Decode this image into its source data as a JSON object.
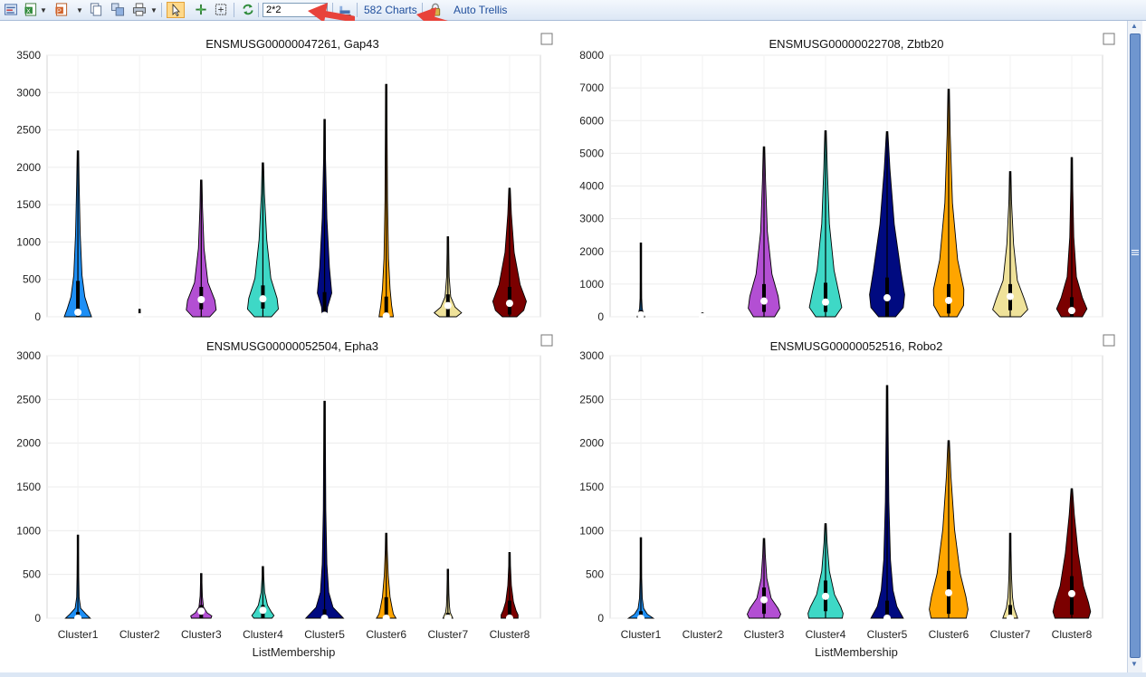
{
  "toolbar": {
    "layout_value": "2*2",
    "charts_count_label": "582 Charts",
    "auto_trellis_label": "Auto Trellis",
    "icons": [
      "properties-icon",
      "excel-export-icon",
      "powerpoint-export-icon",
      "copy-icon",
      "copy-all-icon",
      "print-icon",
      "select-pointer-icon",
      "pan-icon",
      "zoom-fit-icon",
      "refresh-icon",
      "bar-chart-icon",
      "lock-icon"
    ]
  },
  "annotation_color": "#e8423a",
  "x_axis_label": "ListMembership",
  "cluster_colors": [
    "#1e8ff5",
    "#9a9a9a",
    "#b34fd3",
    "#3ed8c6",
    "#000a80",
    "#ffa500",
    "#efe29a",
    "#7b0000"
  ],
  "chart_data": [
    {
      "type": "violin",
      "title": "ENSMUSG00000047261, Gap43",
      "categories": [
        "Cluster1",
        "Cluster2",
        "Cluster3",
        "Cluster4",
        "Cluster5",
        "Cluster6",
        "Cluster7",
        "Cluster8"
      ],
      "ylim": [
        0,
        3500
      ],
      "yticks": [
        0,
        500,
        1000,
        1500,
        2000,
        2500,
        3000,
        3500
      ],
      "show_x_labels": false,
      "max": [
        2220,
        100,
        1830,
        2060,
        2640,
        3110,
        1070,
        1720
      ],
      "median": [
        60,
        0,
        230,
        240,
        20,
        10,
        150,
        180
      ],
      "q1": [
        0,
        0,
        100,
        110,
        0,
        0,
        0,
        30
      ],
      "q3": [
        480,
        10,
        400,
        420,
        330,
        270,
        300,
        400
      ],
      "shape": [
        [
          500,
          380,
          240,
          130,
          60,
          20
        ],
        [
          60,
          20,
          5,
          2,
          0,
          0
        ],
        [
          300,
          550,
          500,
          230,
          80,
          20
        ],
        [
          300,
          570,
          520,
          280,
          120,
          30
        ],
        [
          60,
          90,
          250,
          160,
          60,
          10
        ],
        [
          250,
          180,
          120,
          60,
          20,
          5
        ],
        [
          300,
          500,
          250,
          80,
          20,
          5
        ],
        [
          250,
          520,
          620,
          380,
          150,
          40
        ]
      ]
    },
    {
      "type": "violin",
      "title": "ENSMUSG00000022708, Zbtb20",
      "categories": [
        "Cluster1",
        "Cluster2",
        "Cluster3",
        "Cluster4",
        "Cluster5",
        "Cluster6",
        "Cluster7",
        "Cluster8"
      ],
      "ylim": [
        0,
        8000
      ],
      "yticks": [
        0,
        1000,
        2000,
        3000,
        4000,
        5000,
        6000,
        7000,
        8000
      ],
      "show_x_labels": false,
      "max": [
        2260,
        120,
        5200,
        5690,
        5660,
        6960,
        4440,
        4870
      ],
      "median": [
        60,
        0,
        480,
        450,
        580,
        500,
        620,
        190
      ],
      "q1": [
        0,
        0,
        150,
        150,
        0,
        100,
        200,
        0
      ],
      "q3": [
        200,
        20,
        1000,
        1040,
        1200,
        1000,
        1000,
        600
      ],
      "shape": [
        [
          120,
          60,
          20,
          5,
          0,
          0
        ],
        [
          40,
          15,
          5,
          0,
          0,
          0
        ],
        [
          380,
          580,
          520,
          280,
          100,
          30
        ],
        [
          350,
          600,
          500,
          300,
          120,
          40
        ],
        [
          300,
          600,
          650,
          500,
          250,
          80
        ],
        [
          300,
          550,
          560,
          320,
          120,
          30
        ],
        [
          380,
          650,
          520,
          250,
          100,
          20
        ],
        [
          380,
          560,
          380,
          150,
          50,
          10
        ]
      ]
    },
    {
      "type": "violin",
      "title": "ENSMUSG00000052504, Epha3",
      "categories": [
        "Cluster1",
        "Cluster2",
        "Cluster3",
        "Cluster4",
        "Cluster5",
        "Cluster6",
        "Cluster7",
        "Cluster8"
      ],
      "ylim": [
        0,
        3000
      ],
      "yticks": [
        0,
        500,
        1000,
        1500,
        2000,
        2500,
        3000
      ],
      "show_x_labels": true,
      "max": [
        950,
        0,
        510,
        590,
        2480,
        970,
        560,
        750
      ],
      "median": [
        0,
        0,
        80,
        90,
        0,
        0,
        0,
        0
      ],
      "q1": [
        0,
        0,
        0,
        0,
        0,
        0,
        0,
        0
      ],
      "q3": [
        70,
        0,
        150,
        150,
        100,
        240,
        60,
        200
      ],
      "shape": [
        [
          450,
          280,
          80,
          20,
          5,
          0
        ],
        [
          0,
          0,
          0,
          0,
          0,
          0
        ],
        [
          350,
          380,
          200,
          60,
          15,
          0
        ],
        [
          320,
          400,
          300,
          150,
          40,
          5
        ],
        [
          700,
          300,
          130,
          60,
          20,
          5
        ],
        [
          350,
          250,
          200,
          120,
          50,
          10
        ],
        [
          160,
          120,
          60,
          30,
          10,
          0
        ],
        [
          300,
          300,
          220,
          120,
          40,
          5
        ]
      ]
    },
    {
      "type": "violin",
      "title": "ENSMUSG00000052516, Robo2",
      "categories": [
        "Cluster1",
        "Cluster2",
        "Cluster3",
        "Cluster4",
        "Cluster5",
        "Cluster6",
        "Cluster7",
        "Cluster8"
      ],
      "ylim": [
        0,
        3000
      ],
      "yticks": [
        0,
        500,
        1000,
        1500,
        2000,
        2500,
        3000
      ],
      "show_x_labels": true,
      "max": [
        920,
        0,
        910,
        1080,
        2660,
        2030,
        970,
        1480
      ],
      "median": [
        0,
        0,
        210,
        250,
        0,
        290,
        0,
        280
      ],
      "q1": [
        0,
        0,
        50,
        80,
        0,
        50,
        0,
        40
      ],
      "q3": [
        80,
        0,
        350,
        430,
        200,
        540,
        150,
        480
      ],
      "shape": [
        [
          450,
          220,
          80,
          25,
          5,
          0
        ],
        [
          0,
          0,
          0,
          0,
          0,
          0
        ],
        [
          550,
          620,
          520,
          250,
          80,
          20
        ],
        [
          620,
          650,
          560,
          320,
          120,
          30
        ],
        [
          600,
          350,
          200,
          100,
          40,
          10
        ],
        [
          650,
          720,
          640,
          420,
          200,
          60
        ],
        [
          260,
          200,
          120,
          60,
          20,
          5
        ],
        [
          620,
          700,
          620,
          420,
          220,
          70
        ]
      ]
    }
  ]
}
